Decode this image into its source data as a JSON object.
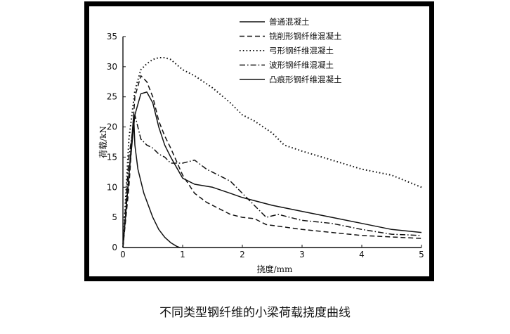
{
  "caption": "不同类型钢纤维的小梁荷载挠度曲线",
  "chart_data": {
    "type": "line",
    "title": "",
    "xlabel": "挠度/mm",
    "ylabel": "荷载/kN",
    "xlim": [
      0,
      5
    ],
    "ylim": [
      0,
      35
    ],
    "xticks": [
      0,
      1,
      2,
      3,
      4,
      5
    ],
    "yticks": [
      0,
      5,
      10,
      15,
      20,
      25,
      30,
      35
    ],
    "grid": false,
    "legend_position": "top-right",
    "series": [
      {
        "name": "普通混凝土",
        "style": "solid",
        "color": "#111111",
        "x": [
          0,
          0.1,
          0.18,
          0.2,
          0.25,
          0.35,
          0.5,
          0.6,
          0.7,
          0.8,
          0.9,
          0.95
        ],
        "y": [
          0,
          12,
          22,
          17,
          13,
          9,
          5,
          3,
          1.7,
          0.8,
          0.2,
          0
        ]
      },
      {
        "name": "铣削形钢纤维混凝土",
        "style": "dashed",
        "color": "#111111",
        "x": [
          0,
          0.1,
          0.2,
          0.3,
          0.4,
          0.5,
          0.6,
          0.7,
          0.8,
          1.0,
          1.2,
          1.4,
          1.6,
          1.8,
          2.0,
          2.2,
          2.4,
          3.0,
          4.0,
          5.0
        ],
        "y": [
          0,
          10,
          25,
          28.5,
          27.5,
          25,
          21,
          18.5,
          16.5,
          12,
          9,
          7.5,
          6.5,
          5.5,
          5,
          4.8,
          3.8,
          3,
          2,
          1.5
        ]
      },
      {
        "name": "弓形钢纤维混凝土",
        "style": "dotted",
        "color": "#111111",
        "x": [
          0,
          0.1,
          0.2,
          0.3,
          0.4,
          0.5,
          0.6,
          0.7,
          0.8,
          1.0,
          1.2,
          1.5,
          1.8,
          2.0,
          2.2,
          2.5,
          2.7,
          3.0,
          3.5,
          4.0,
          4.5,
          5.0
        ],
        "y": [
          0,
          18,
          26,
          29.5,
          30.5,
          31.2,
          31.5,
          31.5,
          31.2,
          29.5,
          28.5,
          26.5,
          24,
          22,
          21,
          19,
          17,
          16,
          14.5,
          13,
          12,
          10
        ]
      },
      {
        "name": "波形钢纤维混凝土",
        "style": "dashdot",
        "color": "#111111",
        "x": [
          0,
          0.1,
          0.2,
          0.3,
          0.4,
          0.5,
          0.6,
          0.7,
          0.8,
          1.0,
          1.2,
          1.4,
          1.6,
          1.8,
          2.0,
          2.2,
          2.4,
          2.6,
          3.0,
          3.5,
          4.0,
          4.5,
          5.0
        ],
        "y": [
          0,
          15,
          22,
          18,
          17,
          16.5,
          15.5,
          15,
          14,
          14,
          14.5,
          13,
          12,
          11,
          9,
          7,
          5,
          5.5,
          4.5,
          4,
          3,
          2.2,
          2
        ]
      },
      {
        "name": "凸痕形钢纤维混凝土",
        "style": "solid",
        "color": "#111111",
        "x": [
          0,
          0.1,
          0.2,
          0.3,
          0.4,
          0.5,
          0.6,
          0.7,
          0.8,
          1.0,
          1.2,
          1.5,
          1.8,
          2.0,
          2.5,
          3.0,
          3.5,
          4.0,
          4.5,
          5.0
        ],
        "y": [
          0,
          12,
          22,
          25.5,
          25.8,
          24,
          20,
          17,
          15,
          11.5,
          10.5,
          10,
          9,
          8.3,
          7,
          6,
          5,
          4,
          3,
          2.5
        ]
      }
    ]
  }
}
